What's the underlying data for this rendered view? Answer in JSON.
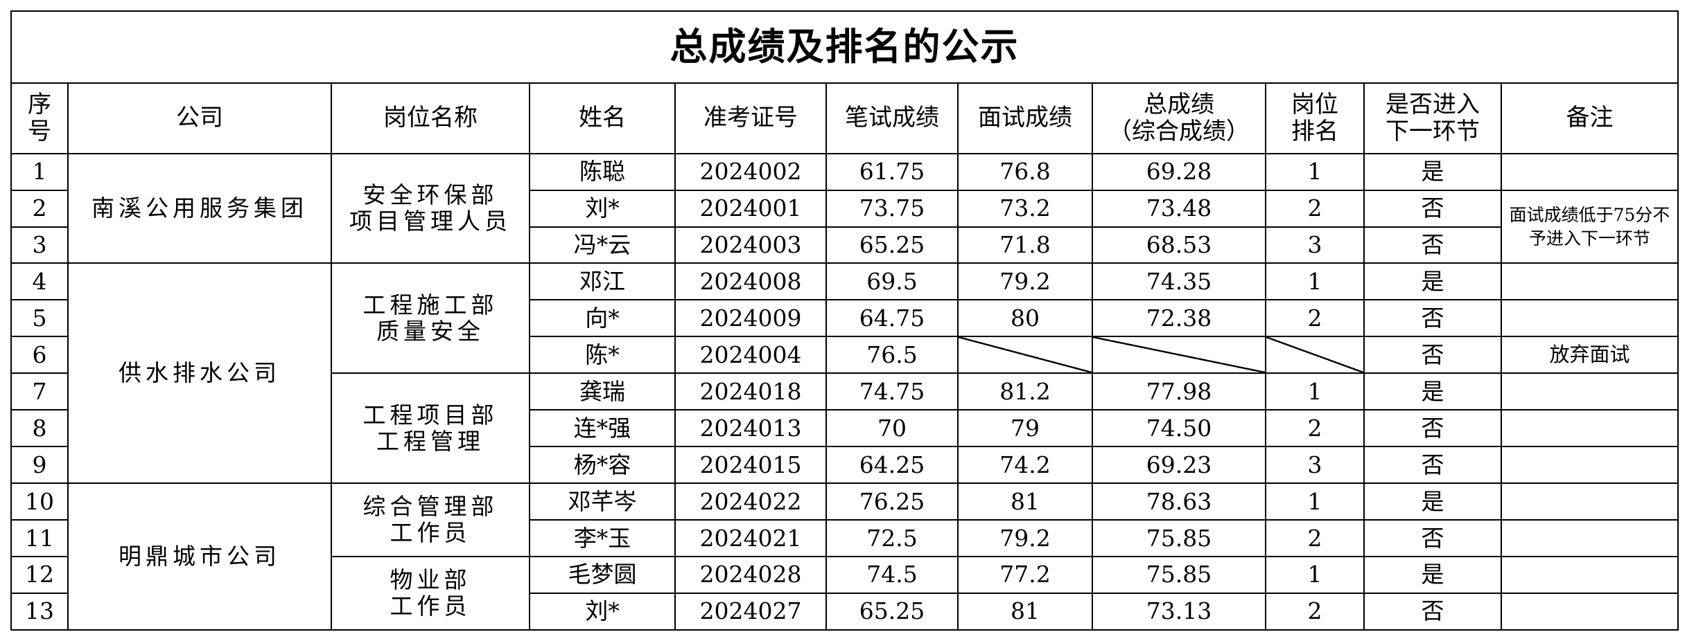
{
  "title": "总成绩及排名的公示",
  "headers": {
    "seq": [
      "序",
      "号"
    ],
    "company": "公司",
    "position": "岗位名称",
    "name": "姓名",
    "exam_id": "准考证号",
    "written": "笔试成绩",
    "interview": "面试成绩",
    "total": [
      "总成绩",
      "（综合成绩）"
    ],
    "rank": [
      "岗位",
      "排名"
    ],
    "advance": [
      "是否进入",
      "下一环节"
    ],
    "remark": "备注"
  },
  "companies": [
    {
      "name": "南溪公用服务集团"
    },
    {
      "name": "供水排水公司"
    },
    {
      "name": "明鼎城市公司"
    }
  ],
  "positions": [
    {
      "lines": [
        "安全环保部",
        "项目管理人员"
      ]
    },
    {
      "lines": [
        "工程施工部",
        "质量安全"
      ]
    },
    {
      "lines": [
        "工程项目部",
        "工程管理"
      ]
    },
    {
      "lines": [
        "综合管理部",
        "工作员"
      ]
    },
    {
      "lines": [
        "物业部",
        "工作员"
      ]
    }
  ],
  "remarks": {
    "group1": "面试成绩低于75分不予进入下一环节",
    "row6": "放弃面试"
  },
  "rows": [
    {
      "seq": "1",
      "name": "陈聪",
      "exam_id": "2024002",
      "written": "61.75",
      "interview": "76.8",
      "total": "69.28",
      "rank": "1",
      "advance": "是"
    },
    {
      "seq": "2",
      "name": "刘*",
      "exam_id": "2024001",
      "written": "73.75",
      "interview": "73.2",
      "total": "73.48",
      "rank": "2",
      "advance": "否"
    },
    {
      "seq": "3",
      "name": "冯*云",
      "exam_id": "2024003",
      "written": "65.25",
      "interview": "71.8",
      "total": "68.53",
      "rank": "3",
      "advance": "否"
    },
    {
      "seq": "4",
      "name": "邓江",
      "exam_id": "2024008",
      "written": "69.5",
      "interview": "79.2",
      "total": "74.35",
      "rank": "1",
      "advance": "是"
    },
    {
      "seq": "5",
      "name": "向*",
      "exam_id": "2024009",
      "written": "64.75",
      "interview": "80",
      "total": "72.38",
      "rank": "2",
      "advance": "否"
    },
    {
      "seq": "6",
      "name": "陈*",
      "exam_id": "2024004",
      "written": "76.5",
      "interview": "",
      "total": "",
      "rank": "",
      "advance": "否"
    },
    {
      "seq": "7",
      "name": "龚瑞",
      "exam_id": "2024018",
      "written": "74.75",
      "interview": "81.2",
      "total": "77.98",
      "rank": "1",
      "advance": "是"
    },
    {
      "seq": "8",
      "name": "连*强",
      "exam_id": "2024013",
      "written": "70",
      "interview": "79",
      "total": "74.50",
      "rank": "2",
      "advance": "否"
    },
    {
      "seq": "9",
      "name": "杨*容",
      "exam_id": "2024015",
      "written": "64.25",
      "interview": "74.2",
      "total": "69.23",
      "rank": "3",
      "advance": "否"
    },
    {
      "seq": "10",
      "name": "邓芊岑",
      "exam_id": "2024022",
      "written": "76.25",
      "interview": "81",
      "total": "78.63",
      "rank": "1",
      "advance": "是"
    },
    {
      "seq": "11",
      "name": "李*玉",
      "exam_id": "2024021",
      "written": "72.5",
      "interview": "79.2",
      "total": "75.85",
      "rank": "2",
      "advance": "否"
    },
    {
      "seq": "12",
      "name": "毛梦圆",
      "exam_id": "2024028",
      "written": "74.5",
      "interview": "77.2",
      "total": "75.85",
      "rank": "1",
      "advance": "是"
    },
    {
      "seq": "13",
      "name": "刘*",
      "exam_id": "2024027",
      "written": "65.25",
      "interview": "81",
      "total": "73.13",
      "rank": "2",
      "advance": "否"
    }
  ]
}
